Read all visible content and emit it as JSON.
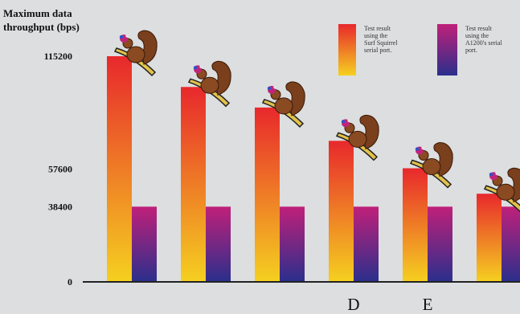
{
  "chart_data": {
    "type": "bar",
    "ylabel_lines": [
      "Maximum data",
      "throughput (bps)"
    ],
    "yticks": [
      {
        "value": 0,
        "label": "0"
      },
      {
        "value": 38400,
        "label": "38400"
      },
      {
        "value": 57600,
        "label": "57600"
      },
      {
        "value": 115200,
        "label": "115200"
      }
    ],
    "ylim": [
      0,
      115200
    ],
    "categories": [
      "",
      "",
      "",
      "D",
      "E",
      ""
    ],
    "series": [
      {
        "name": "Test result using the Surf Squirrel serial port.",
        "legend_lines": [
          "Test result",
          "using the",
          "Surf Squirrel",
          "serial port."
        ],
        "color_top": "#e8282c",
        "color_bottom": "#f5d020",
        "values": [
          115200,
          99500,
          89000,
          72000,
          58000,
          45000
        ]
      },
      {
        "name": "Test result using the A1200's serial port.",
        "legend_lines": [
          "Test result",
          "using the",
          "A1200's serial",
          "port."
        ],
        "color_top": "#c0207a",
        "color_bottom": "#2a2f8c",
        "values": [
          38400,
          38400,
          38400,
          38400,
          38400,
          38400
        ]
      }
    ],
    "decoration_icon": "squirrel-icon",
    "grid": false,
    "legend_position": "top-right"
  }
}
